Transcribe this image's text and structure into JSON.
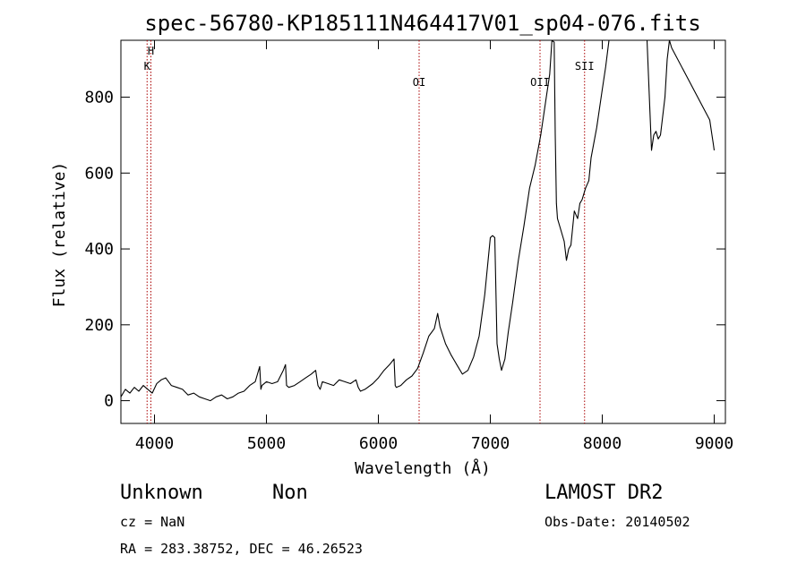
{
  "chart_data": {
    "type": "line",
    "title": "spec-56780-KP185111N464417V01_sp04-076.fits",
    "xlabel": "Wavelength (Å)",
    "ylabel": "Flux (relative)",
    "xlim": [
      3700,
      9100
    ],
    "ylim": [
      -60,
      950
    ],
    "x_ticks": [
      4000,
      5000,
      6000,
      7000,
      8000,
      9000
    ],
    "y_ticks": [
      0,
      200,
      400,
      600,
      800
    ],
    "grid": false,
    "series": [
      {
        "x": [
          3700,
          3740,
          3780,
          3820,
          3860,
          3900,
          3940,
          3980,
          4020,
          4060,
          4100,
          4150,
          4200,
          4250,
          4300,
          4350,
          4400,
          4450,
          4500,
          4550,
          4600,
          4650,
          4700,
          4750,
          4800,
          4850,
          4900,
          4940,
          4950,
          4960,
          5000,
          5050,
          5100,
          5150,
          5170,
          5180,
          5200,
          5250,
          5300,
          5350,
          5400,
          5440,
          5460,
          5480,
          5500,
          5550,
          5600,
          5650,
          5700,
          5750,
          5800,
          5820,
          5840,
          5880,
          5950,
          6000,
          6050,
          6100,
          6140,
          6150,
          6160,
          6200,
          6250,
          6300,
          6350,
          6400,
          6450,
          6500,
          6530,
          6550,
          6600,
          6650,
          6700,
          6750,
          6800,
          6850,
          6900,
          6950,
          7000,
          7020,
          7040,
          7060,
          7080,
          7100,
          7130,
          7160,
          7200,
          7250,
          7300,
          7350,
          7400,
          7450,
          7500,
          7530,
          7550,
          7570,
          7580,
          7590,
          7600,
          7620,
          7640,
          7660,
          7680,
          7700,
          7720,
          7750,
          7780,
          7800,
          7820,
          7850,
          7880,
          7900,
          7950,
          8000,
          8030,
          8060,
          8100,
          8150,
          8200,
          8250,
          8300,
          8350,
          8400,
          8440,
          8460,
          8480,
          8500,
          8520,
          8540,
          8560,
          8580,
          8600,
          8620,
          8960,
          8980,
          8990,
          9000
        ],
        "y": [
          10,
          30,
          20,
          35,
          25,
          40,
          30,
          20,
          45,
          55,
          60,
          40,
          35,
          30,
          15,
          20,
          10,
          5,
          0,
          10,
          15,
          5,
          10,
          20,
          25,
          40,
          50,
          90,
          30,
          40,
          50,
          45,
          50,
          80,
          95,
          40,
          35,
          40,
          50,
          60,
          70,
          80,
          40,
          30,
          50,
          45,
          40,
          55,
          50,
          45,
          55,
          35,
          25,
          30,
          45,
          60,
          80,
          95,
          110,
          40,
          35,
          40,
          55,
          65,
          85,
          125,
          170,
          190,
          230,
          195,
          150,
          120,
          95,
          70,
          80,
          115,
          170,
          280,
          430,
          435,
          430,
          150,
          110,
          80,
          110,
          180,
          260,
          370,
          460,
          560,
          620,
          700,
          800,
          860,
          950,
          945,
          700,
          520,
          480,
          460,
          440,
          420,
          370,
          400,
          410,
          500,
          480,
          520,
          530,
          560,
          580,
          640,
          720,
          820,
          880,
          950,
          950,
          950,
          950,
          950,
          950,
          950,
          950,
          660,
          700,
          710,
          690,
          700,
          750,
          800,
          900,
          950,
          930,
          740,
          700,
          680,
          660
        ],
        "color": "#000000"
      }
    ],
    "line_markers": [
      {
        "label": "H",
        "x": 3968
      },
      {
        "label": "K",
        "x": 3934
      },
      {
        "label": "OI",
        "x": 6364
      },
      {
        "label": "OII",
        "x": 7444
      },
      {
        "label": "SII",
        "x": 7842
      }
    ],
    "marker_color": "#aa0000"
  },
  "info": {
    "class_label": "Unknown",
    "subclass_label": "Non",
    "cz_text": "cz = NaN",
    "coords_text": "RA = 283.38752, DEC =  46.26523",
    "survey_label": "LAMOST DR2",
    "obs_date_text": "Obs-Date: 20140502"
  }
}
